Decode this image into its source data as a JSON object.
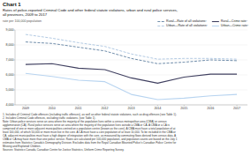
{
  "chart_data": {
    "type": "line",
    "title": "Chart 1",
    "subtitle": [
      "Rates of police-reported Criminal Code and other federal statute violations, urban and rural police services,",
      "all provinces, 2009 to 2017"
    ],
    "y_label": "rate per 100,000 population",
    "x": [
      2009,
      2010,
      2011,
      2012,
      2013,
      2014,
      2015,
      2016,
      2017
    ],
    "xlim": [
      2008.6,
      2017.4
    ],
    "xticks": [
      2009,
      2010,
      2011,
      2012,
      2013,
      2014,
      2015,
      2016,
      2017
    ],
    "ylim": [
      4000,
      9000
    ],
    "yticks": [
      {
        "value": 4000,
        "label": "4,000"
      },
      {
        "value": 5000,
        "label": "5,000"
      },
      {
        "value": 6000,
        "label": "6,000"
      },
      {
        "value": 7000,
        "label": "7,000"
      },
      {
        "value": 8000,
        "label": "8,000"
      },
      {
        "value": 9000,
        "label": "9,000"
      }
    ],
    "grid": true,
    "legend": "upper right",
    "series": [
      {
        "name": "Rural—Rate of all violations¹",
        "color": "#6080a0",
        "line_style": "dashed",
        "values": [
          8200,
          8100,
          7850,
          7600,
          7100,
          6750,
          6850,
          7000,
          6950
        ]
      },
      {
        "name": "Urban—Rate of all violations¹",
        "color": "#aac4e0",
        "line_style": "dashed",
        "values": [
          8700,
          8450,
          8150,
          7900,
          7400,
          7050,
          7100,
          7100,
          7050
        ]
      },
      {
        "name": "Rural—Crime rate²",
        "color": "#404060",
        "line_style": "solid",
        "values": [
          6700,
          6750,
          6450,
          6350,
          5800,
          5450,
          5850,
          6050,
          6050
        ]
      },
      {
        "name": "Urban—Crime rate²",
        "color": "#b8d4f0",
        "line_style": "solid",
        "values": [
          6100,
          5900,
          5650,
          5550,
          4700,
          4350,
          4450,
          4600,
          4700
        ]
      }
    ],
    "annotations": [
      "1. Includes all Criminal Code offences (including traffic offences), as well as other federal statute violations, such as drug offences (see Table 1).",
      "2. Includes Criminal Code offences, excluding traffic violations. (see Table 1).",
      "Note: Urban police services serve an area where the majority of the population lives within a census metropolitan area (CMA) or census",
      "agglomeration (CA). Rural police services serve an area where the majority of the population lives outside a CMA or CA. A CMA or a CA is",
      "comprised of one or more adjacent municipalities centred on a population centre (known as the core). A CMA must have a total population of at",
      "least 100,000, of which 50,000 or more must live in the core. A CA must have a core population of at least 10,000. To be included in the CMA or",
      "CA, adjacent municipalities must have a high degree of integration with the core, as measured by commuting flows derived from census data. A",
      "CMA or CA may have more than one police service. Rates are calculated per 100,000 population, and population counts are based on the July 1",
      "estimates from Statistics Canada's Demography Division. Excludes data from the Royal Canadian Mounted Police's Canadian Police Centre for",
      "Missing and Exploited Children.",
      "Sources: Statistics Canada, Canadian Centre for Justice Statistics, Uniform Crime Reporting Survey."
    ]
  }
}
